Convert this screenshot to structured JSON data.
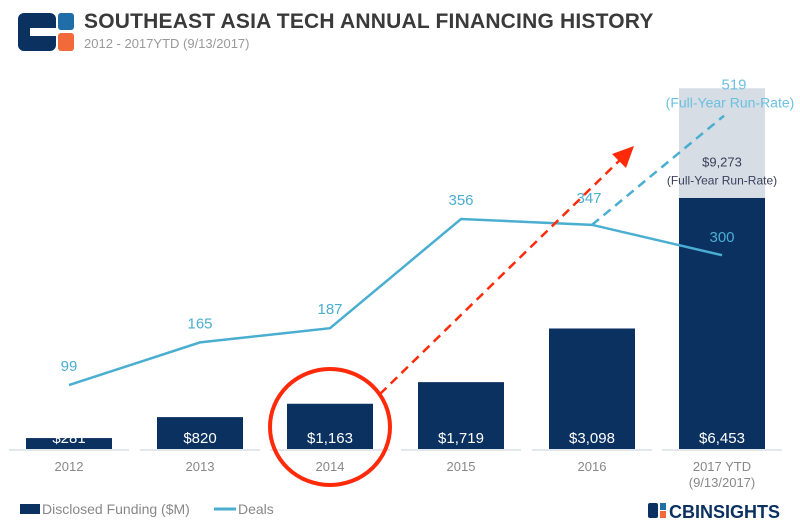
{
  "header": {
    "title": "SOUTHEAST ASIA TECH ANNUAL FINANCING HISTORY",
    "subtitle": "2012 - 2017YTD  (9/13/2017)"
  },
  "branding": {
    "logo_text": "CBINSIGHTS"
  },
  "colors": {
    "bar": "#0b3160",
    "runrate": "#d6dde4",
    "line": "#4aaed1",
    "arrow": "#ff2a0a",
    "logo_orange": "#f26a3a",
    "logo_blue": "#1f6ea8"
  },
  "chart_data": {
    "type": "bar+line",
    "categories": [
      "2012",
      "2013",
      "2014",
      "2015",
      "2016",
      "2017 YTD"
    ],
    "category_sublabels": [
      "",
      "",
      "",
      "",
      "",
      "(9/13/2017)"
    ],
    "series": [
      {
        "name": "Disclosed Funding ($M)",
        "type": "bar",
        "values": [
          281,
          820,
          1163,
          1719,
          3098,
          6453
        ],
        "labels": [
          "$281",
          "$820",
          "$1,163",
          "$1,719",
          "$3,098",
          "$6,453"
        ]
      },
      {
        "name": "Deals",
        "type": "line",
        "values": [
          99,
          165,
          187,
          356,
          347,
          300
        ],
        "labels": [
          "99",
          "165",
          "187",
          "356",
          "347",
          "300"
        ]
      }
    ],
    "projections": {
      "funding": {
        "value": 9273,
        "label": "$9,273",
        "note": "(Full-Year Run-Rate)"
      },
      "deals": {
        "value": 519,
        "label": "519",
        "note": "(Full-Year Run-Rate)"
      }
    },
    "annotations": {
      "highlight": "2014",
      "trend_arrow": "red dashed arrow from 2014 upward"
    },
    "legend": {
      "placement": "bottom-left"
    },
    "grid": false
  }
}
